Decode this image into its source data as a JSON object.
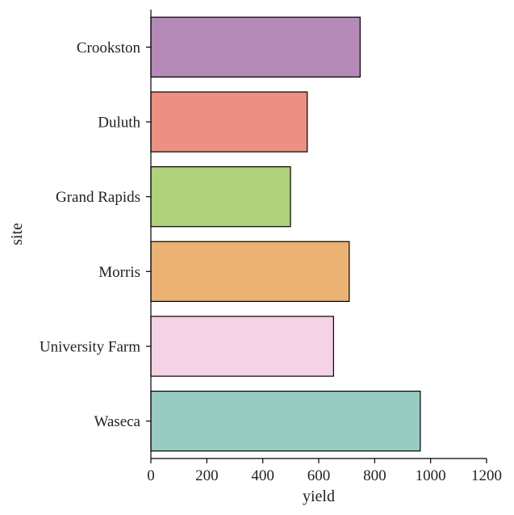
{
  "chart_data": {
    "type": "bar",
    "orientation": "horizontal",
    "categories": [
      "Crookston",
      "Duluth",
      "Grand Rapids",
      "Morris",
      "University Farm",
      "Waseca"
    ],
    "values": [
      748,
      559,
      499,
      709,
      653,
      963
    ],
    "colors": [
      "#b589b8",
      "#eb9082",
      "#b0d27b",
      "#ebb273",
      "#f5d3e6",
      "#98cbc1"
    ],
    "xlabel": "yield",
    "ylabel": "site",
    "xlim": [
      0,
      1200
    ],
    "xticks": [
      0,
      200,
      400,
      600,
      800,
      1000,
      1200
    ],
    "grid": false,
    "legend": false
  }
}
